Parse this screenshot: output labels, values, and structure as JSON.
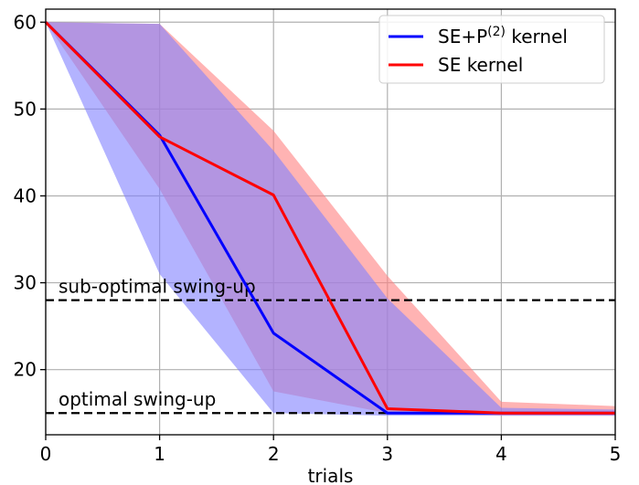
{
  "chart_data": {
    "type": "line",
    "xlabel": "trials",
    "ylabel": "",
    "xlim": [
      0,
      5
    ],
    "ylim": [
      12.5,
      61.5
    ],
    "grid": true,
    "legend_position": "top-right",
    "x_ticks": [
      0,
      1,
      2,
      3,
      4,
      5
    ],
    "y_ticks": [
      20,
      30,
      40,
      50,
      60
    ],
    "x_tick_labels": [
      "0",
      "1",
      "2",
      "3",
      "4",
      "5"
    ],
    "y_tick_labels": [
      "20",
      "30",
      "40",
      "50",
      "60"
    ],
    "series": [
      {
        "name": "SE kernel",
        "color": "#ff0000",
        "band_color": "#ff8080",
        "x": [
          0,
          1,
          2,
          3,
          4,
          5
        ],
        "values": [
          60,
          46.8,
          40.1,
          15.5,
          15.0,
          15.0
        ],
        "band_upper": [
          60,
          59.8,
          47.5,
          30.8,
          16.3,
          15.8
        ],
        "band_lower": [
          60,
          40.8,
          17.5,
          15.0,
          14.7,
          14.7
        ]
      },
      {
        "name": "SE+P(2) kernel",
        "name_main": "SE+P",
        "name_sup": "(2)",
        "name_suffix": " kernel",
        "color": "#0000ff",
        "band_color": "#8080ff",
        "x": [
          0,
          1,
          2,
          3,
          4,
          5
        ],
        "values": [
          60,
          47.0,
          24.2,
          15.0,
          15.0,
          15.0
        ],
        "band_upper": [
          60,
          59.8,
          45.2,
          28.2,
          15.6,
          15.4
        ],
        "band_lower": [
          60,
          31.0,
          15.0,
          14.7,
          14.7,
          14.7
        ]
      }
    ],
    "reference_lines": [
      {
        "label": "sub-optimal swing-up",
        "y": 28
      },
      {
        "label": "optimal swing-up",
        "y": 15
      }
    ]
  }
}
